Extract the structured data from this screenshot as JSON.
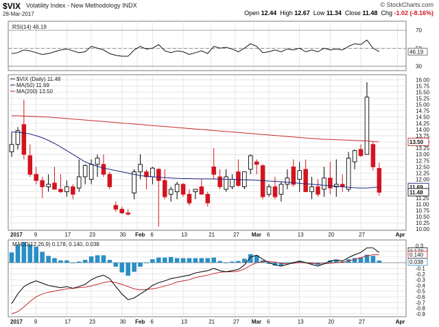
{
  "header": {
    "symbol": "$VIX",
    "name": "Volatility Index - New Methodology",
    "exchange": "INDX",
    "date": "28-Mar-2017",
    "brand": "© StockCharts.com",
    "open_label": "Open",
    "open": "12.44",
    "high_label": "High",
    "high": "12.67",
    "low_label": "Low",
    "low": "11.34",
    "close_label": "Close",
    "close": "11.48",
    "chg_label": "Chg",
    "chg": "-1.02 (-8.16%)"
  },
  "colors": {
    "up": "#000000",
    "down": "#d4141e",
    "ma50": "#1a237e",
    "ma200": "#c62828",
    "grid": "#dcdcdc",
    "hist": "#2a8fc6",
    "rsi_band": "#8a8a8a"
  },
  "chart_data": [
    {
      "type": "candlestick",
      "panel": "price",
      "legend": [
        "$VIX (Daily) 11.48",
        "MA(50) 11.69",
        "MA(200) 13.50"
      ],
      "ylim": [
        9.95,
        16.2
      ],
      "yticks": [
        10.0,
        10.25,
        10.5,
        10.75,
        11.0,
        11.25,
        11.5,
        11.75,
        12.0,
        12.25,
        12.5,
        12.75,
        13.0,
        13.25,
        13.5,
        13.75,
        14.0,
        14.25,
        14.5,
        14.75,
        15.0,
        15.25,
        15.5,
        15.75,
        16.0
      ],
      "last_labels": {
        "ma200": "13.50",
        "ma50": "11.69",
        "close": "11.48"
      },
      "series": [
        {
          "name": "$VIX",
          "ohlc": [
            [
              13.1,
              13.9,
              12.9,
              13.4
            ],
            [
              13.4,
              14.1,
              13.2,
              13.95
            ],
            [
              14.2,
              15.2,
              12.8,
              13.0
            ],
            [
              12.95,
              13.4,
              12.1,
              12.2
            ],
            [
              12.2,
              12.5,
              11.8,
              11.95
            ],
            [
              11.95,
              12.1,
              11.25,
              11.7
            ],
            [
              11.7,
              12.2,
              11.5,
              11.8
            ],
            [
              11.85,
              12.5,
              11.6,
              11.6
            ],
            [
              11.6,
              12.2,
              11.45,
              11.5
            ],
            [
              11.5,
              11.95,
              11.3,
              11.7
            ],
            [
              11.7,
              11.8,
              11.2,
              11.4
            ],
            [
              11.65,
              12.8,
              11.5,
              12.1
            ],
            [
              12.1,
              12.6,
              11.8,
              12.55
            ],
            [
              12.0,
              12.8,
              11.8,
              12.6
            ],
            [
              12.6,
              13.0,
              12.1,
              12.85
            ],
            [
              12.6,
              13.0,
              12.1,
              12.2
            ],
            [
              12.2,
              12.3,
              11.6,
              11.7
            ],
            [
              10.95,
              11.1,
              10.7,
              10.8
            ],
            [
              10.8,
              10.9,
              10.6,
              10.65
            ],
            [
              10.65,
              10.8,
              10.55,
              10.6
            ],
            [
              11.45,
              12.4,
              11.2,
              12.3
            ],
            [
              12.3,
              13.0,
              12.0,
              12.6
            ],
            [
              12.3,
              12.4,
              11.6,
              12.1
            ],
            [
              12.1,
              12.5,
              11.8,
              12.45
            ],
            [
              12.4,
              12.45,
              10.1,
              11.95
            ],
            [
              11.95,
              12.4,
              11.2,
              11.3
            ],
            [
              11.4,
              11.7,
              11.1,
              11.6
            ],
            [
              11.5,
              11.9,
              11.2,
              11.8
            ],
            [
              11.8,
              11.85,
              11.3,
              11.4
            ],
            [
              11.4,
              11.6,
              10.95,
              11.05
            ],
            [
              11.5,
              11.6,
              11.2,
              11.6
            ],
            [
              11.7,
              12.0,
              11.4,
              11.4
            ],
            [
              11.4,
              11.5,
              10.9,
              11.05
            ],
            [
              12.5,
              13.25,
              12.0,
              12.2
            ],
            [
              12.1,
              12.4,
              11.6,
              11.7
            ],
            [
              11.6,
              12.4,
              11.5,
              12.1
            ],
            [
              11.7,
              12.2,
              11.6,
              12.0
            ],
            [
              12.3,
              12.8,
              11.7,
              11.75
            ],
            [
              11.7,
              12.3,
              11.6,
              12.3
            ],
            [
              12.4,
              13.0,
              12.2,
              12.95
            ],
            [
              12.7,
              12.8,
              12.2,
              12.6
            ],
            [
              12.55,
              12.6,
              11.2,
              11.3
            ],
            [
              11.4,
              11.8,
              11.3,
              11.7
            ],
            [
              11.7,
              12.1,
              11.2,
              11.3
            ],
            [
              11.4,
              11.9,
              11.1,
              11.8
            ],
            [
              11.8,
              12.4,
              11.6,
              12.05
            ],
            [
              12.5,
              12.8,
              11.7,
              11.8
            ],
            [
              12.0,
              12.7,
              11.5,
              12.35
            ],
            [
              12.4,
              12.8,
              11.5,
              11.5
            ],
            [
              11.5,
              12.1,
              11.2,
              11.7
            ],
            [
              11.7,
              12.0,
              11.3,
              11.4
            ],
            [
              11.6,
              12.5,
              11.3,
              12.05
            ],
            [
              12.05,
              12.7,
              11.4,
              11.65
            ],
            [
              11.7,
              12.8,
              11.3,
              11.8
            ],
            [
              11.8,
              12.2,
              11.5,
              11.7
            ],
            [
              11.6,
              13.1,
              11.5,
              12.85
            ],
            [
              12.7,
              13.2,
              12.4,
              13.15
            ],
            [
              13.2,
              13.4,
              12.9,
              12.95
            ],
            [
              13.0,
              15.9,
              13.0,
              15.3
            ],
            [
              13.4,
              13.5,
              12.35,
              12.5
            ],
            [
              12.44,
              12.67,
              11.34,
              11.48
            ]
          ]
        },
        {
          "name": "MA(50)",
          "values": [
            13.9,
            13.89,
            13.86,
            13.82,
            13.75,
            13.67,
            13.56,
            13.44,
            13.3,
            13.15,
            13.0,
            12.85,
            12.7,
            12.6,
            12.52,
            12.45,
            12.4,
            12.35,
            12.3,
            12.25,
            12.2,
            12.15,
            12.12,
            12.1,
            12.08,
            12.07,
            12.05,
            12.04,
            12.03,
            12.03,
            12.02,
            12.02,
            12.02,
            12.01,
            12.01,
            12.0,
            12.0,
            11.99,
            11.98,
            11.97,
            11.96,
            11.95,
            11.93,
            11.92,
            11.9,
            11.88,
            11.86,
            11.84,
            11.82,
            11.8,
            11.78,
            11.76,
            11.74,
            11.72,
            11.7,
            11.68,
            11.66,
            11.65,
            11.65,
            11.67,
            11.69
          ]
        },
        {
          "name": "MA(200)",
          "values": [
            14.55,
            14.55,
            14.54,
            14.53,
            14.52,
            14.51,
            14.5,
            14.48,
            14.46,
            14.44,
            14.42,
            14.4,
            14.38,
            14.36,
            14.34,
            14.32,
            14.3,
            14.28,
            14.26,
            14.24,
            14.22,
            14.2,
            14.18,
            14.16,
            14.14,
            14.12,
            14.1,
            14.08,
            14.06,
            14.04,
            14.02,
            14.0,
            13.98,
            13.96,
            13.94,
            13.92,
            13.9,
            13.88,
            13.86,
            13.84,
            13.82,
            13.8,
            13.78,
            13.76,
            13.74,
            13.72,
            13.7,
            13.68,
            13.66,
            13.64,
            13.62,
            13.61,
            13.6,
            13.59,
            13.58,
            13.57,
            13.56,
            13.55,
            13.54,
            13.52,
            13.5
          ]
        }
      ]
    },
    {
      "type": "line",
      "panel": "rsi",
      "legend": [
        "RSI(14) 46.19"
      ],
      "ylim": [
        25,
        80
      ],
      "yticks": [
        30,
        50,
        70,
        90
      ],
      "bands": [
        30,
        70
      ],
      "last_label": "46.19",
      "values": [
        44,
        45,
        48,
        47,
        45,
        43,
        44,
        46,
        48,
        49,
        47,
        45,
        46,
        52,
        50,
        48,
        44,
        42,
        41,
        41,
        48,
        52,
        49,
        50,
        54,
        47,
        45,
        47,
        46,
        43,
        45,
        47,
        44,
        52,
        50,
        51,
        49,
        46,
        50,
        55,
        52,
        45,
        46,
        48,
        46,
        49,
        48,
        50,
        46,
        48,
        46,
        50,
        48,
        49,
        48,
        52,
        55,
        54,
        59,
        50,
        46.19
      ]
    },
    {
      "type": "bar+line",
      "panel": "macd",
      "legend": [
        "MACD(12,26,9) 0.178, 0.140, 0.038"
      ],
      "ylim": [
        -0.95,
        0.4
      ],
      "yticks": [
        -0.9,
        -0.8,
        -0.7,
        -0.6,
        -0.5,
        -0.4,
        -0.3,
        -0.2,
        -0.1,
        0.0,
        0.1,
        0.2,
        0.3
      ],
      "last_labels": [
        "0.178",
        "0.140",
        "0.038"
      ],
      "macd": [
        -0.72,
        -0.55,
        -0.42,
        -0.36,
        -0.32,
        -0.36,
        -0.4,
        -0.42,
        -0.44,
        -0.42,
        -0.45,
        -0.42,
        -0.38,
        -0.3,
        -0.25,
        -0.22,
        -0.28,
        -0.42,
        -0.55,
        -0.65,
        -0.62,
        -0.55,
        -0.48,
        -0.4,
        -0.35,
        -0.32,
        -0.28,
        -0.26,
        -0.24,
        -0.22,
        -0.18,
        -0.16,
        -0.14,
        -0.1,
        -0.14,
        -0.16,
        -0.14,
        -0.12,
        -0.04,
        0.1,
        0.13,
        0.06,
        0.0,
        -0.04,
        -0.06,
        -0.03,
        0.0,
        0.03,
        0.0,
        -0.03,
        -0.06,
        -0.02,
        0.03,
        0.05,
        0.03,
        0.09,
        0.14,
        0.18,
        0.26,
        0.26,
        0.178
      ],
      "signal": [
        -0.9,
        -0.86,
        -0.78,
        -0.68,
        -0.6,
        -0.55,
        -0.52,
        -0.5,
        -0.48,
        -0.46,
        -0.45,
        -0.44,
        -0.43,
        -0.41,
        -0.38,
        -0.35,
        -0.33,
        -0.35,
        -0.38,
        -0.42,
        -0.46,
        -0.48,
        -0.47,
        -0.46,
        -0.44,
        -0.41,
        -0.38,
        -0.34,
        -0.32,
        -0.3,
        -0.26,
        -0.24,
        -0.22,
        -0.19,
        -0.17,
        -0.16,
        -0.16,
        -0.15,
        -0.11,
        -0.05,
        0.0,
        0.02,
        0.02,
        0.01,
        -0.01,
        -0.02,
        -0.01,
        0.0,
        0.0,
        -0.01,
        -0.02,
        -0.02,
        -0.01,
        0.0,
        0.01,
        0.03,
        0.06,
        0.09,
        0.12,
        0.14,
        0.14
      ],
      "histogram": [
        0.18,
        0.31,
        0.36,
        0.32,
        0.28,
        0.19,
        0.12,
        0.08,
        0.04,
        0.04,
        0.0,
        0.02,
        0.05,
        0.11,
        0.13,
        0.13,
        0.05,
        -0.07,
        -0.17,
        -0.23,
        -0.16,
        -0.07,
        -0.01,
        0.06,
        0.09,
        0.09,
        0.1,
        0.08,
        0.08,
        0.08,
        0.08,
        0.08,
        0.08,
        0.09,
        0.03,
        0.0,
        0.02,
        0.03,
        0.07,
        0.15,
        0.13,
        0.04,
        -0.02,
        -0.05,
        -0.05,
        -0.01,
        0.01,
        0.03,
        0.0,
        -0.02,
        -0.04,
        0.0,
        0.04,
        0.05,
        0.02,
        0.06,
        0.08,
        0.09,
        0.14,
        0.12,
        0.038
      ]
    }
  ],
  "x_axis": {
    "labels": [
      {
        "text": "2017",
        "idx": 0,
        "bold": true
      },
      {
        "text": "9",
        "idx": 4
      },
      {
        "text": "17",
        "idx": 9
      },
      {
        "text": "23",
        "idx": 13
      },
      {
        "text": "30",
        "idx": 18
      },
      {
        "text": "Feb",
        "idx": 20.5,
        "bold": true
      },
      {
        "text": "6",
        "idx": 23
      },
      {
        "text": "13",
        "idx": 28
      },
      {
        "text": "21",
        "idx": 32.5
      },
      {
        "text": "27",
        "idx": 36.5
      },
      {
        "text": "Mar",
        "idx": 39.5,
        "bold": true
      },
      {
        "text": "6",
        "idx": 42
      },
      {
        "text": "13",
        "idx": 47
      },
      {
        "text": "20",
        "idx": 52
      },
      {
        "text": "27",
        "idx": 57
      },
      {
        "text": "Apr",
        "idx": 63,
        "bold": true
      }
    ]
  }
}
